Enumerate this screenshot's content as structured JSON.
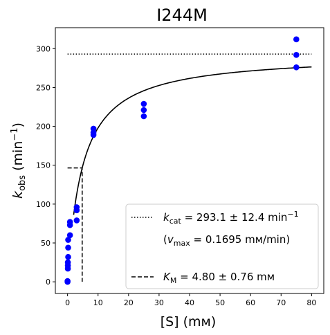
{
  "chart_data": {
    "type": "scatter",
    "title": "I244M",
    "xlabel": "[S] (mм)",
    "ylabel": "k_obs (min⁻¹)",
    "xlim": [
      -4,
      84
    ],
    "ylim": [
      -15,
      327
    ],
    "xticks": [
      0,
      10,
      20,
      30,
      40,
      50,
      60,
      70,
      80
    ],
    "yticks": [
      0,
      50,
      100,
      150,
      200,
      250,
      300
    ],
    "grid": false,
    "legend_position": "lower-right",
    "colors": {
      "points": "#0000ff",
      "lines": "#000000"
    },
    "points": [
      {
        "x": 0,
        "y": 0
      },
      {
        "x": 0,
        "y": 1
      },
      {
        "x": 0.1,
        "y": 17
      },
      {
        "x": 0.1,
        "y": 21
      },
      {
        "x": 0.1,
        "y": 25
      },
      {
        "x": 0.2,
        "y": 32
      },
      {
        "x": 0.2,
        "y": 44
      },
      {
        "x": 0.2,
        "y": 54
      },
      {
        "x": 0.8,
        "y": 60
      },
      {
        "x": 0.8,
        "y": 73
      },
      {
        "x": 0.8,
        "y": 77
      },
      {
        "x": 3,
        "y": 79
      },
      {
        "x": 3,
        "y": 92
      },
      {
        "x": 3,
        "y": 96
      },
      {
        "x": 8.5,
        "y": 189
      },
      {
        "x": 8.5,
        "y": 192
      },
      {
        "x": 8.5,
        "y": 197
      },
      {
        "x": 25,
        "y": 213
      },
      {
        "x": 25,
        "y": 221
      },
      {
        "x": 25,
        "y": 229
      },
      {
        "x": 75,
        "y": 276
      },
      {
        "x": 75,
        "y": 292
      },
      {
        "x": 75,
        "y": 312
      }
    ],
    "fit": {
      "model": "michaelis-menten",
      "kcat": 293.1,
      "km": 4.8,
      "x_range": [
        2,
        80
      ]
    },
    "reference_lines": {
      "kcat_line": {
        "y": 293.1,
        "x_range": [
          0,
          80
        ]
      },
      "km_line": {
        "x": 4.8,
        "y": 146.55
      }
    },
    "legend": [
      {
        "style": "dotted",
        "value_text": "= 293.1 ± 12.4 min",
        "value_sup": "−1"
      },
      {
        "style": "none",
        "value_text": "= 0.1695 mм/min)"
      },
      {
        "style": "dashed",
        "value_text": "= 4.80 ± 0.76 mм"
      }
    ]
  }
}
